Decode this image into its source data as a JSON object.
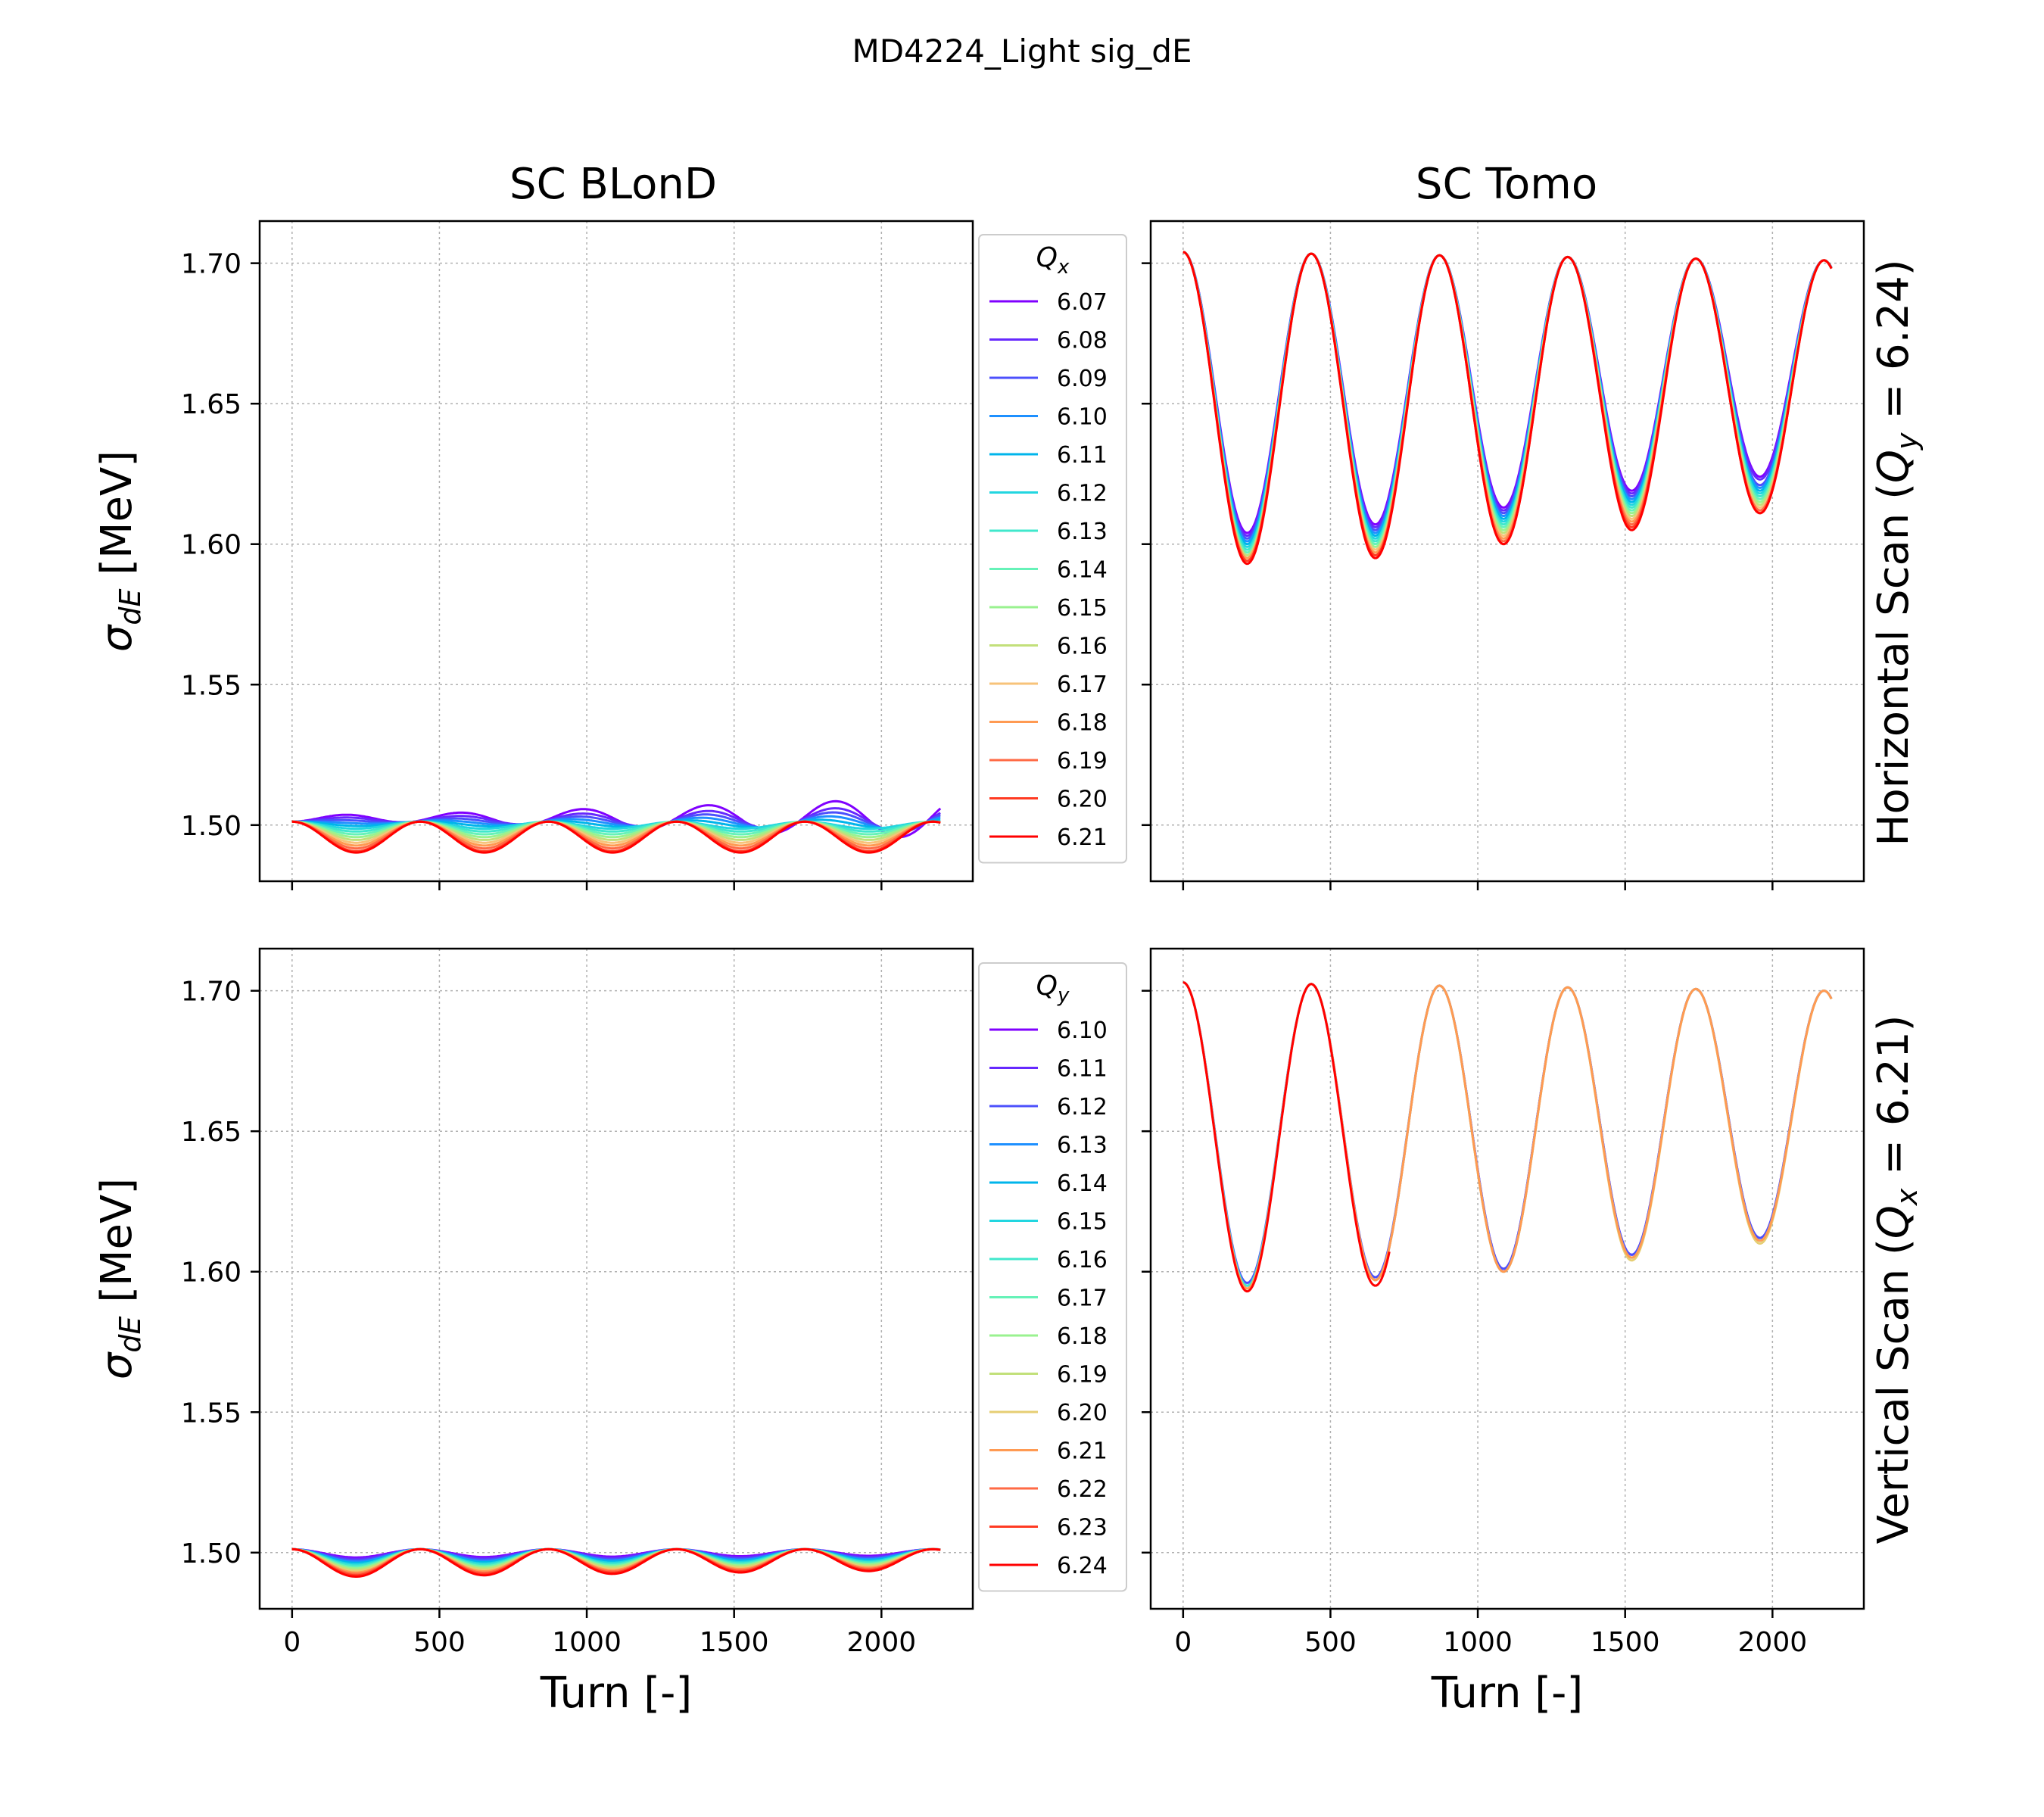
{
  "figure_title": "MD4224_Light sig_dE",
  "column_titles": [
    "SC BLonD",
    "SC Tomo"
  ],
  "row_labels": [
    "Horizontal Scan (Q_y = 6.24)",
    "Vertical Scan (Q_x = 6.21)"
  ],
  "legend_titles": [
    "Q_x",
    "Q_y"
  ],
  "colors": {
    "Qx_6.07": "#8000ff",
    "Qx_6.08": "#6629fe",
    "Qx_6.09": "#4c50fc",
    "Qx_6.10": "#3176f8",
    "Qx_6.11": "#1996f3",
    "Qx_6.12": "#00b5eb",
    "Qx_6.13": "#1acee3",
    "Qx_6.14": "#33e4d7",
    "Qx_6.15": "#4df3ce",
    "Qx_6.16": "#66fcc2",
    "Qx_6.17": "#80ffb4",
    "Qx_6.18": "#9afca5",
    "Qx_6.19": "#b3f396",
    "Qx_6.20": "#cde484",
    "Qx_6.21": "#e6ce73"
  },
  "chart_data": [
    {
      "type": "line",
      "title": "SC BLonD",
      "xlabel": "",
      "ylabel": "σdE [MeV]",
      "xlim": [
        -110,
        2310
      ],
      "ylim": [
        1.48,
        1.715
      ],
      "xticks": [
        0,
        500,
        1000,
        1500,
        2000
      ],
      "yticks": [
        1.5,
        1.55,
        1.6,
        1.65,
        1.7
      ],
      "ytick_labels": [
        "1.50",
        "1.55",
        "1.60",
        "1.65",
        "1.70"
      ],
      "grid": true,
      "legend": {
        "title": "Q_x",
        "placement": "right outside"
      },
      "model": {
        "base": 1.5,
        "period": 435,
        "phase": 0,
        "x_range": [
          0,
          2200
        ]
      },
      "series": [
        {
          "name": "6.07",
          "color": "#8000ff",
          "dip": -0.0025,
          "drift": 0.003
        },
        {
          "name": "6.08",
          "color": "#6629fe",
          "dip": -0.0015,
          "drift": 0.002
        },
        {
          "name": "6.09",
          "color": "#4c50fc",
          "dip": -0.0005,
          "drift": 0.0015
        },
        {
          "name": "6.10",
          "color": "#1e90ff",
          "dip": 0.0005,
          "drift": 0.001
        },
        {
          "name": "6.11",
          "color": "#00b5eb",
          "dip": 0.0015,
          "drift": 0.0005
        },
        {
          "name": "6.12",
          "color": "#22d6e0",
          "dip": 0.0025,
          "drift": 0.0
        },
        {
          "name": "6.13",
          "color": "#40e8cc",
          "dip": 0.0035,
          "drift": 0.0
        },
        {
          "name": "6.14",
          "color": "#66f2b8",
          "dip": 0.0045,
          "drift": 0.0
        },
        {
          "name": "6.15",
          "color": "#99f28f",
          "dip": 0.0055,
          "drift": 0.0
        },
        {
          "name": "6.16",
          "color": "#c2e07a",
          "dip": 0.0065,
          "drift": 0.0
        },
        {
          "name": "6.17",
          "color": "#f7c37a",
          "dip": 0.0075,
          "drift": 0.0
        },
        {
          "name": "6.18",
          "color": "#ff9a52",
          "dip": 0.0085,
          "drift": 0.0
        },
        {
          "name": "6.19",
          "color": "#ff6a45",
          "dip": 0.0095,
          "drift": 0.0
        },
        {
          "name": "6.20",
          "color": "#ff3a22",
          "dip": 0.0105,
          "drift": 0.0
        },
        {
          "name": "6.21",
          "color": "#ff0000",
          "dip": 0.011,
          "drift": 0.0
        }
      ]
    },
    {
      "type": "line",
      "title": "SC Tomo",
      "xlabel": "",
      "ylabel": "",
      "xlim": [
        -110,
        2310
      ],
      "ylim": [
        1.48,
        1.715
      ],
      "xticks": [
        0,
        500,
        1000,
        1500,
        2000
      ],
      "yticks": [
        1.5,
        1.55,
        1.6,
        1.65,
        1.7
      ],
      "grid": true,
      "model": {
        "period": 435,
        "x_range": [
          0,
          2200
        ]
      },
      "series": [
        {
          "name": "6.07",
          "color": "#8000ff",
          "top": 1.704,
          "minima": [
            1.604,
            1.607,
            1.613,
            1.619,
            1.624
          ]
        },
        {
          "name": "6.08",
          "color": "#6629fe",
          "top": 1.704,
          "minima": [
            1.603,
            1.606,
            1.612,
            1.618,
            1.623
          ]
        },
        {
          "name": "6.09",
          "color": "#4c50fc",
          "top": 1.704,
          "minima": [
            1.602,
            1.605,
            1.611,
            1.617,
            1.621
          ]
        },
        {
          "name": "6.10",
          "color": "#1e90ff",
          "top": 1.704,
          "minima": [
            1.601,
            1.604,
            1.61,
            1.616,
            1.62
          ]
        },
        {
          "name": "6.11",
          "color": "#00b5eb",
          "top": 1.704,
          "minima": [
            1.6,
            1.603,
            1.609,
            1.615,
            1.619
          ]
        },
        {
          "name": "6.12",
          "color": "#22d6e0",
          "top": 1.704,
          "minima": [
            1.599,
            1.602,
            1.608,
            1.614,
            1.618
          ]
        },
        {
          "name": "6.13",
          "color": "#40e8cc",
          "top": 1.704,
          "minima": [
            1.598,
            1.601,
            1.607,
            1.613,
            1.617
          ]
        },
        {
          "name": "6.14",
          "color": "#66f2b8",
          "top": 1.704,
          "minima": [
            1.597,
            1.6,
            1.606,
            1.612,
            1.616
          ]
        },
        {
          "name": "6.15",
          "color": "#99f28f",
          "top": 1.704,
          "minima": [
            1.596,
            1.599,
            1.605,
            1.611,
            1.615
          ]
        },
        {
          "name": "6.16",
          "color": "#c2e07a",
          "top": 1.704,
          "minima": [
            1.596,
            1.598,
            1.604,
            1.61,
            1.614
          ]
        },
        {
          "name": "6.17",
          "color": "#f7c37a",
          "top": 1.704,
          "minima": [
            1.595,
            1.598,
            1.603,
            1.609,
            1.613
          ]
        },
        {
          "name": "6.18",
          "color": "#ff9a52",
          "top": 1.704,
          "minima": [
            1.595,
            1.597,
            1.602,
            1.608,
            1.612
          ]
        },
        {
          "name": "6.19",
          "color": "#ff6a45",
          "top": 1.704,
          "minima": [
            1.594,
            1.596,
            1.601,
            1.607,
            1.612
          ]
        },
        {
          "name": "6.20",
          "color": "#ff3a22",
          "top": 1.704,
          "minima": [
            1.594,
            1.596,
            1.6,
            1.606,
            1.611
          ]
        },
        {
          "name": "6.21",
          "color": "#ff0000",
          "top": 1.704,
          "minima": [
            1.593,
            1.595,
            1.6,
            1.605,
            1.611
          ]
        }
      ]
    },
    {
      "type": "line",
      "title": "",
      "xlabel": "Turn [-]",
      "ylabel": "σdE [MeV]",
      "xlim": [
        -110,
        2310
      ],
      "ylim": [
        1.48,
        1.715
      ],
      "xticks": [
        0,
        500,
        1000,
        1500,
        2000
      ],
      "xtick_labels": [
        "0",
        "500",
        "1000",
        "1500",
        "2000"
      ],
      "yticks": [
        1.5,
        1.55,
        1.6,
        1.65,
        1.7
      ],
      "ytick_labels": [
        "1.50",
        "1.55",
        "1.60",
        "1.65",
        "1.70"
      ],
      "grid": true,
      "legend": {
        "title": "Q_y",
        "placement": "right outside"
      },
      "model": {
        "base": 1.5,
        "period": 435,
        "x_range": [
          0,
          2200
        ]
      },
      "series": [
        {
          "name": "6.10",
          "color": "#8000ff",
          "dip": 0.003
        },
        {
          "name": "6.11",
          "color": "#6629fe",
          "dip": 0.0035
        },
        {
          "name": "6.12",
          "color": "#4c50fc",
          "dip": 0.004
        },
        {
          "name": "6.13",
          "color": "#1e90ff",
          "dip": 0.0045
        },
        {
          "name": "6.14",
          "color": "#00b5eb",
          "dip": 0.005
        },
        {
          "name": "6.15",
          "color": "#22d6e0",
          "dip": 0.0055
        },
        {
          "name": "6.16",
          "color": "#40e8cc",
          "dip": 0.006
        },
        {
          "name": "6.17",
          "color": "#66f2b8",
          "dip": 0.0065
        },
        {
          "name": "6.18",
          "color": "#99f28f",
          "dip": 0.007
        },
        {
          "name": "6.19",
          "color": "#c2e07a",
          "dip": 0.0075
        },
        {
          "name": "6.20",
          "color": "#e6ce73",
          "dip": 0.008
        },
        {
          "name": "6.21",
          "color": "#ff9a52",
          "dip": 0.0085
        },
        {
          "name": "6.22",
          "color": "#ff6a45",
          "dip": 0.009
        },
        {
          "name": "6.23",
          "color": "#ff3a22",
          "dip": 0.0095
        },
        {
          "name": "6.24",
          "color": "#ff0000",
          "dip": 0.01
        }
      ]
    },
    {
      "type": "line",
      "title": "",
      "xlabel": "Turn [-]",
      "ylabel": "",
      "xlim": [
        -110,
        2310
      ],
      "ylim": [
        1.48,
        1.715
      ],
      "xticks": [
        0,
        500,
        1000,
        1500,
        2000
      ],
      "xtick_labels": [
        "0",
        "500",
        "1000",
        "1500",
        "2000"
      ],
      "yticks": [
        1.5,
        1.55,
        1.6,
        1.65,
        1.7
      ],
      "grid": true,
      "model": {
        "period": 435,
        "x_range": [
          0,
          2200
        ]
      },
      "series": [
        {
          "name": "6.10",
          "color": "#8000ff",
          "end": 2200,
          "top": 1.703,
          "minima": [
            1.595,
            1.597,
            1.601,
            1.606,
            1.612
          ]
        },
        {
          "name": "6.13",
          "color": "#4c50fc",
          "end": 2200,
          "top": 1.703,
          "minima": [
            1.596,
            1.598,
            1.601,
            1.606,
            1.612
          ]
        },
        {
          "name": "6.17",
          "color": "#40e8cc",
          "end": 2200,
          "top": 1.703,
          "minima": [
            1.595,
            1.597,
            1.6,
            1.605,
            1.611
          ]
        },
        {
          "name": "6.20",
          "color": "#e6ce73",
          "end": 2200,
          "top": 1.703,
          "minima": [
            1.594,
            1.597,
            1.6,
            1.604,
            1.61
          ]
        },
        {
          "name": "6.21",
          "color": "#ff9a52",
          "end": 2200,
          "top": 1.703,
          "minima": [
            1.594,
            1.597,
            1.6,
            1.605,
            1.611
          ]
        },
        {
          "name": "6.24",
          "color": "#ff0000",
          "end": 700,
          "top": 1.703,
          "minima": [
            1.593,
            1.595
          ]
        }
      ]
    }
  ]
}
